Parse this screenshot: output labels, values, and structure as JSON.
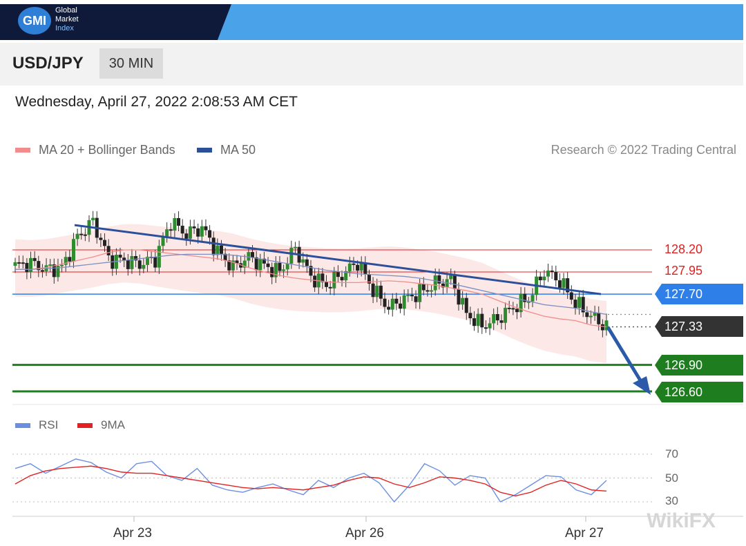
{
  "brand": {
    "logo": "GMI",
    "line1": "Global",
    "line2": "Market",
    "line3": "Index"
  },
  "header": {
    "symbol": "USD/JPY",
    "timeframe": "30 MIN"
  },
  "datetime": "Wednesday, April 27, 2022 2:08:53 AM CET",
  "legend": {
    "ma20_label": "MA 20 + Bollinger Bands",
    "ma50_label": "MA 50",
    "credit": "Research © 2022 Trading Central",
    "colors": {
      "ma20": "#f28b8b",
      "ma50": "#2c4f99"
    }
  },
  "levels": {
    "resistance_2": "128.20",
    "resistance_1": "127.95",
    "pivot": "127.70",
    "last": "127.33",
    "support_1": "126.90",
    "support_2": "126.60",
    "colors": {
      "resistance": "#e02020",
      "pivot": "#2f7fe8",
      "last": "#333333",
      "support": "#1e7d1e"
    }
  },
  "rsi_legend": {
    "rsi_label": "RSI",
    "ma_label": "9MA",
    "colors": {
      "rsi": "#6b8fe0",
      "ma": "#e22222"
    }
  },
  "rsi_levels": [
    "70",
    "50",
    "30"
  ],
  "x_labels": [
    "Apr 23",
    "Apr 26",
    "Apr 27"
  ],
  "watermark": "WikiFX",
  "chart_data": [
    {
      "type": "line",
      "title": "USD/JPY",
      "series": [
        {
          "name": "MA 20 + Bollinger Bands",
          "values": [
            127.98,
            127.98,
            128.0,
            128.04,
            128.08,
            128.12,
            128.17,
            128.2,
            128.2,
            128.18,
            128.16,
            128.14,
            128.12,
            128.1,
            128.06,
            128.0,
            127.95,
            127.91,
            127.88,
            127.86,
            127.84,
            127.83,
            127.83,
            127.84,
            127.85,
            127.84,
            127.82,
            127.8,
            127.77,
            127.74,
            127.7,
            127.63,
            127.56,
            127.5,
            127.45,
            127.42,
            127.4,
            127.35,
            127.33
          ]
        },
        {
          "name": "MA 50",
          "values": [
            127.98,
            127.98,
            127.99,
            128.0,
            128.02,
            128.04,
            128.06,
            128.08,
            128.1,
            128.12,
            128.14,
            128.15,
            128.15,
            128.15,
            128.14,
            128.12,
            128.09,
            128.06,
            128.03,
            128.0,
            127.97,
            127.95,
            127.93,
            127.92,
            127.91,
            127.9,
            127.88,
            127.85,
            127.82,
            127.78,
            127.74,
            127.7,
            127.66,
            127.62,
            127.58,
            127.56,
            127.54,
            127.5,
            127.47
          ]
        },
        {
          "name": "Close",
          "values": [
            128.02,
            128.05,
            127.98,
            128.0,
            128.35,
            128.52,
            128.1,
            128.08,
            128.04,
            128.1,
            128.52,
            128.38,
            128.45,
            128.18,
            128.0,
            128.12,
            128.02,
            127.95,
            128.22,
            127.9,
            127.8,
            127.92,
            128.06,
            127.75,
            127.55,
            127.64,
            127.72,
            127.82,
            127.86,
            127.48,
            127.34,
            127.42,
            127.55,
            127.65,
            127.96,
            127.85,
            127.6,
            127.45,
            127.33
          ]
        }
      ],
      "trendline": {
        "from": {
          "x": "Apr 22",
          "y": 128.48
        },
        "to": {
          "x": "Apr 27",
          "y": 127.7
        }
      },
      "horizontal_levels": [
        128.2,
        127.95,
        127.7,
        127.33,
        126.9,
        126.6
      ],
      "ylim": [
        126.55,
        128.6
      ]
    },
    {
      "type": "line",
      "title": "RSI",
      "series": [
        {
          "name": "RSI",
          "values": [
            58,
            62,
            54,
            60,
            66,
            63,
            55,
            50,
            62,
            64,
            52,
            48,
            58,
            44,
            40,
            38,
            42,
            45,
            40,
            36,
            48,
            42,
            50,
            54,
            46,
            30,
            44,
            62,
            56,
            44,
            52,
            50,
            30,
            36,
            44,
            52,
            51,
            40,
            36,
            48
          ]
        },
        {
          "name": "9MA",
          "values": [
            45,
            52,
            56,
            58,
            59,
            60,
            58,
            55,
            54,
            54,
            52,
            50,
            48,
            46,
            44,
            42,
            41,
            42,
            41,
            40,
            42,
            44,
            48,
            51,
            50,
            45,
            42,
            46,
            51,
            50,
            48,
            45,
            38,
            35,
            38,
            44,
            48,
            45,
            40,
            39
          ]
        }
      ],
      "ylim": [
        25,
        75
      ]
    }
  ]
}
